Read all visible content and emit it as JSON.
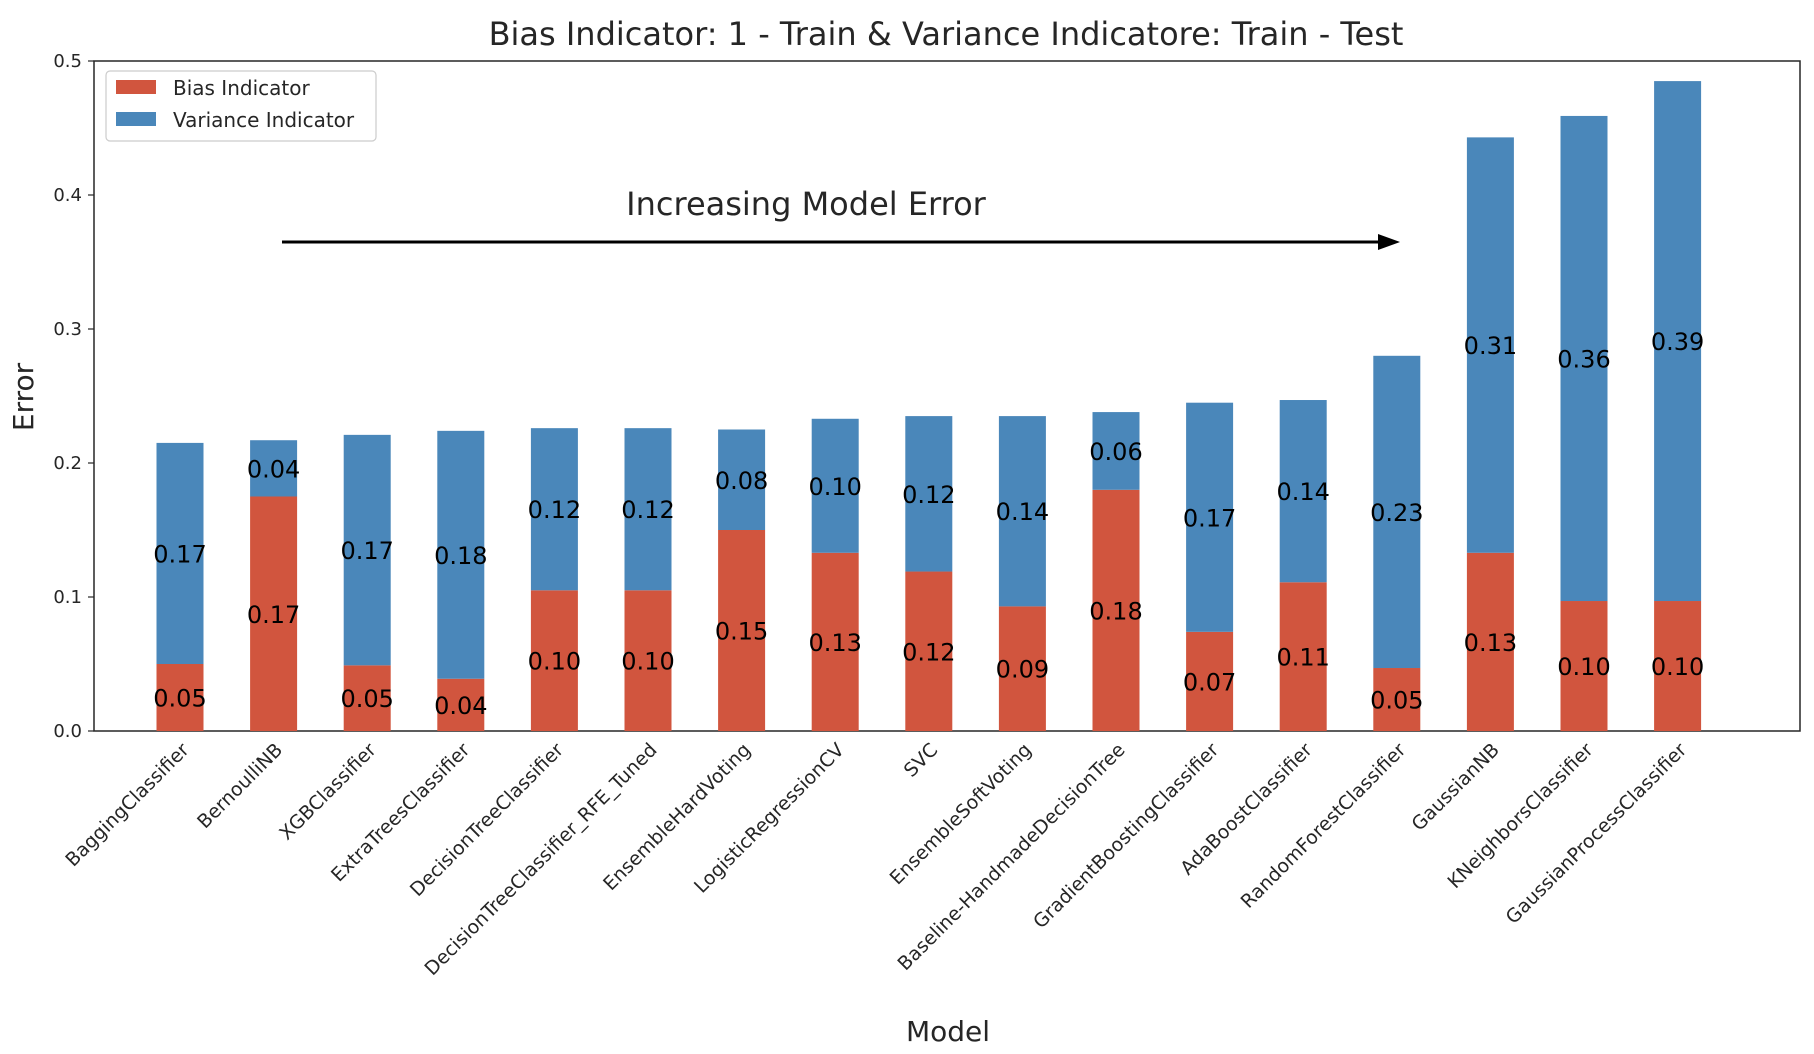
{
  "chart_data": {
    "type": "bar",
    "stacked": true,
    "title": "Bias Indicator: 1 - Train & Variance Indicatore: Train - Test",
    "xlabel": "Model",
    "ylabel": "Error",
    "ylim": [
      0,
      0.5
    ],
    "yticks": [
      "0.0",
      "0.1",
      "0.2",
      "0.3",
      "0.4",
      "0.5"
    ],
    "grid": false,
    "legend_position": "top-left",
    "annotation": {
      "text": "Increasing Model Error",
      "arrow": "right"
    },
    "categories": [
      "BaggingClassifier",
      "BernoulliNB",
      "XGBClassifier",
      "ExtraTreesClassifier",
      "DecisionTreeClassifier",
      "DecisionTreeClassifier_RFE_Tuned",
      "EnsembleHardVoting",
      "LogisticRegressionCV",
      "SVC",
      "EnsembleSoftVoting",
      "Baseline-HandmadeDecisionTree",
      "GradientBoostingClassifier",
      "AdaBoostClassifier",
      "RandomForestClassifier",
      "GaussianNB",
      "KNeighborsClassifier",
      "GaussianProcessClassifier"
    ],
    "series": [
      {
        "name": "Bias Indicator",
        "color": "#d1553e",
        "values": [
          0.05,
          0.175,
          0.049,
          0.039,
          0.105,
          0.105,
          0.15,
          0.133,
          0.119,
          0.093,
          0.18,
          0.074,
          0.111,
          0.047,
          0.133,
          0.097,
          0.097
        ],
        "labels": [
          "0.05",
          "0.17",
          "0.05",
          "0.04",
          "0.10",
          "0.10",
          "0.15",
          "0.13",
          "0.12",
          "0.09",
          "0.18",
          "0.07",
          "0.11",
          "0.05",
          "0.13",
          "0.10",
          "0.10"
        ]
      },
      {
        "name": "Variance Indicator",
        "color": "#4a87ba",
        "values": [
          0.165,
          0.042,
          0.172,
          0.185,
          0.121,
          0.121,
          0.075,
          0.1,
          0.116,
          0.142,
          0.058,
          0.171,
          0.136,
          0.233,
          0.31,
          0.362,
          0.388
        ],
        "labels": [
          "0.17",
          "0.04",
          "0.17",
          "0.18",
          "0.12",
          "0.12",
          "0.08",
          "0.10",
          "0.12",
          "0.14",
          "0.06",
          "0.17",
          "0.14",
          "0.23",
          "0.31",
          "0.36",
          "0.39"
        ]
      }
    ]
  }
}
